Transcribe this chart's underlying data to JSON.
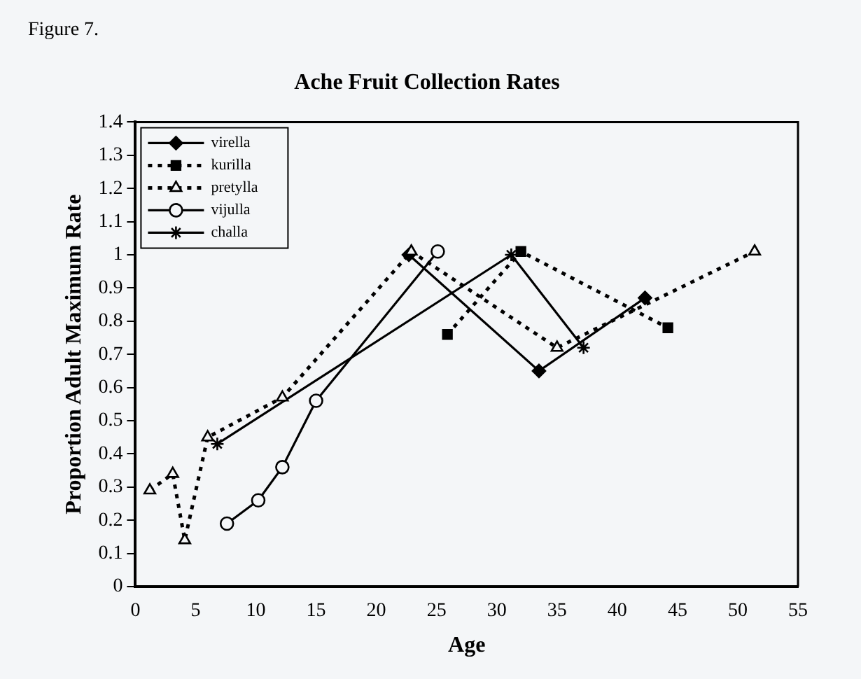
{
  "chart_data": {
    "type": "line",
    "title": "Ache Fruit Collection Rates",
    "xlabel": "Age",
    "ylabel": "Proportion Adult Maximum Rate",
    "annotations": [
      "Figure 7."
    ],
    "xlim": [
      0,
      55
    ],
    "xticks": [
      0,
      5,
      10,
      15,
      20,
      25,
      30,
      35,
      40,
      45,
      50,
      55
    ],
    "ylim": [
      0,
      1.4
    ],
    "yticks": [
      0,
      0.1,
      0.2,
      0.3,
      0.4,
      0.5,
      0.6,
      0.7,
      0.8,
      0.9,
      1,
      1.1,
      1.2,
      1.3,
      1.4
    ],
    "grid": false,
    "legend": "top left",
    "series": [
      {
        "name": "virella",
        "color": "#000000",
        "marker": "diamond",
        "line_style": "solid",
        "x": [
          22.7,
          33.5,
          42.3
        ],
        "values": [
          1.0,
          0.65,
          0.87
        ]
      },
      {
        "name": "kurilla",
        "color": "#000000",
        "marker": "square",
        "line_style": "dotted",
        "x": [
          25.9,
          32.0,
          44.2
        ],
        "values": [
          0.76,
          1.01,
          0.78
        ]
      },
      {
        "name": "pretylla",
        "color": "#000000",
        "marker": "triangle",
        "line_style": "dotted",
        "x": [
          1.2,
          3.1,
          4.1,
          6.0,
          12.2,
          22.9,
          35.0,
          51.4
        ],
        "values": [
          0.29,
          0.34,
          0.14,
          0.45,
          0.57,
          1.01,
          0.72,
          1.01
        ]
      },
      {
        "name": "vijulla",
        "color": "#000000",
        "marker": "circle",
        "line_style": "solid",
        "x": [
          7.6,
          10.2,
          12.2,
          15.0,
          25.1
        ],
        "values": [
          0.19,
          0.26,
          0.36,
          0.56,
          1.01
        ]
      },
      {
        "name": "challa",
        "color": "#000000",
        "marker": "cross",
        "line_style": "solid",
        "x": [
          6.8,
          31.2,
          37.2
        ],
        "values": [
          0.43,
          1.0,
          0.72
        ]
      }
    ]
  }
}
